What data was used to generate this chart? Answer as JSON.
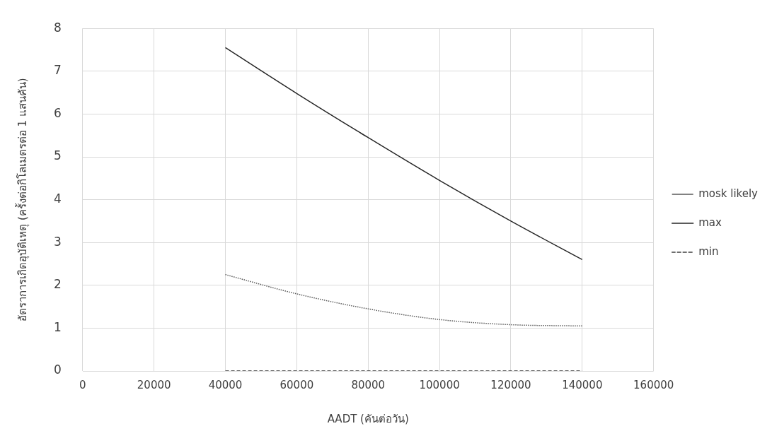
{
  "chart_data": {
    "type": "line",
    "xlabel": "AADT (คันต่อวัน)",
    "ylabel": "อัตราการเกิดอุบัติเหตุ (ครั้งต่อกิโลเมตรต่อ 1 แสนคัน)",
    "x": [
      40000,
      60000,
      80000,
      100000,
      120000,
      140000
    ],
    "series": [
      {
        "name": "mosk likely",
        "color": "#595959",
        "line_style": "dotted",
        "values": [
          2.25,
          1.8,
          1.45,
          1.2,
          1.08,
          1.05
        ]
      },
      {
        "name": "max",
        "color": "#262626",
        "line_style": "solid",
        "values": [
          7.55,
          6.48,
          5.45,
          4.45,
          3.5,
          2.6
        ]
      },
      {
        "name": "min",
        "color": "#404040",
        "line_style": "dashed",
        "values": [
          0,
          0,
          0,
          0,
          0,
          0
        ]
      }
    ],
    "xlim": [
      0,
      160000
    ],
    "xticks": [
      0,
      20000,
      40000,
      60000,
      80000,
      100000,
      120000,
      140000,
      160000
    ],
    "ylim": [
      0,
      8
    ],
    "yticks": [
      0,
      1,
      2,
      3,
      4,
      5,
      6,
      7,
      8
    ],
    "grid": true,
    "legend": "right",
    "marker": "none"
  }
}
